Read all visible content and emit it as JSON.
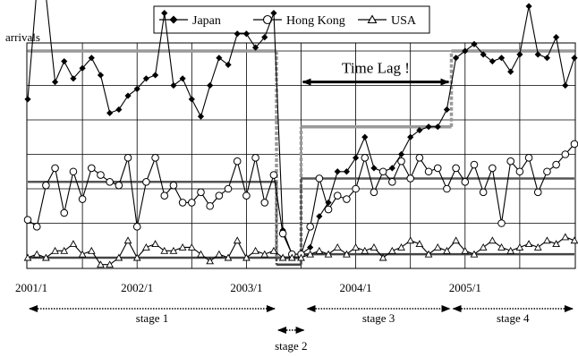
{
  "chart_data": {
    "type": "line",
    "ylabel": "arrivals",
    "ylim": [
      0,
      8
    ],
    "grid": "on",
    "legend_position": "top",
    "colors": {
      "series": "#000000",
      "stage_level": "#999999",
      "lag_arrow": "#000000",
      "grid": "#000000"
    },
    "x_ticks": [
      {
        "label": "2001/1",
        "x": 1
      },
      {
        "label": "2002/1",
        "x": 13
      },
      {
        "label": "2003/1",
        "x": 25
      },
      {
        "label": "2004/1",
        "x": 37
      },
      {
        "label": "2005/1",
        "x": 49
      }
    ],
    "series": [
      {
        "name": "Japan",
        "marker": "diamond-filled",
        "values": [
          4.6,
          7.8,
          7.6,
          5.1,
          5.7,
          5.2,
          5.5,
          5.8,
          5.3,
          4.2,
          4.3,
          4.7,
          4.9,
          5.2,
          5.3,
          7.1,
          5.0,
          5.2,
          4.6,
          4.1,
          5.0,
          5.8,
          5.6,
          6.5,
          6.5,
          6.1,
          6.4,
          7.1,
          0.8,
          0.1,
          0.1,
          0.3,
          1.2,
          1.6,
          2.5,
          2.5,
          2.9,
          3.5,
          2.6,
          2.5,
          2.6,
          3.0,
          3.5,
          3.7,
          3.8,
          3.8,
          4.3,
          5.8,
          6.0,
          6.2,
          5.9,
          5.7,
          5.8,
          5.4,
          5.9,
          7.3,
          5.9,
          5.8,
          6.4,
          5.0,
          5.8
        ]
      },
      {
        "name": "Hong Kong",
        "marker": "circle-open",
        "values": [
          1.1,
          0.9,
          2.1,
          2.6,
          1.3,
          2.5,
          1.7,
          2.6,
          2.4,
          2.2,
          2.1,
          2.9,
          0.9,
          2.2,
          2.9,
          1.8,
          2.1,
          1.6,
          1.6,
          1.9,
          1.5,
          1.8,
          2.0,
          2.8,
          1.8,
          2.9,
          1.6,
          2.4,
          0.7,
          0.1,
          0.1,
          0.9,
          2.3,
          1.4,
          1.8,
          1.7,
          2.0,
          2.9,
          1.9,
          2.5,
          2.2,
          2.8,
          2.3,
          2.9,
          2.5,
          2.6,
          2.0,
          2.6,
          2.2,
          2.7,
          1.9,
          2.6,
          1.0,
          2.8,
          2.5,
          2.9,
          1.9,
          2.5,
          2.7,
          3.0,
          3.3
        ]
      },
      {
        "name": "USA",
        "marker": "triangle-open",
        "values": [
          0.0,
          0.1,
          0.0,
          0.2,
          0.2,
          0.4,
          0.1,
          0.2,
          -0.2,
          -0.2,
          0.0,
          0.5,
          0.0,
          0.3,
          0.4,
          0.2,
          0.2,
          0.3,
          0.3,
          0.1,
          -0.1,
          0.1,
          0.0,
          0.5,
          0.0,
          0.2,
          0.1,
          0.2,
          0.0,
          0.0,
          0.0,
          0.1,
          0.2,
          0.1,
          0.3,
          0.1,
          0.3,
          0.2,
          0.3,
          0.0,
          0.2,
          0.3,
          0.5,
          0.4,
          0.1,
          0.3,
          0.2,
          0.5,
          0.2,
          0.1,
          0.3,
          0.5,
          0.3,
          0.2,
          0.3,
          0.4,
          0.3,
          0.5,
          0.4,
          0.6,
          0.5
        ]
      }
    ],
    "stage_levels": [
      {
        "series": "Japan",
        "points": [
          [
            1,
            6.0
          ],
          [
            28.3,
            6.0
          ],
          [
            28.3,
            0.0
          ],
          [
            31,
            0.0
          ],
          [
            31,
            3.8
          ],
          [
            47.5,
            3.8
          ],
          [
            47.5,
            6.0
          ],
          [
            61,
            6.0
          ]
        ]
      },
      {
        "series": "Hong Kong",
        "points": [
          [
            1,
            2.2
          ],
          [
            28.3,
            2.2
          ],
          [
            28.3,
            0.0
          ],
          [
            31,
            0.0
          ],
          [
            31,
            2.3
          ],
          [
            61,
            2.3
          ]
        ]
      },
      {
        "series": "USA",
        "points": [
          [
            1,
            0.0
          ],
          [
            28.3,
            0.0
          ],
          [
            28.3,
            -0.2
          ],
          [
            31,
            -0.2
          ],
          [
            31,
            0.1
          ],
          [
            61,
            0.1
          ]
        ]
      }
    ],
    "annotations": [
      {
        "text": "Time Lag !",
        "from": 31.2,
        "to": 47.2,
        "y": 5.1
      }
    ],
    "stages": [
      {
        "label": "stage 1",
        "start": 1,
        "end": 28.3
      },
      {
        "label": "stage 2",
        "start": 28.3,
        "end": 31.5
      },
      {
        "label": "stage 3",
        "start": 31.5,
        "end": 47.5
      },
      {
        "label": "stage 4",
        "start": 47.5,
        "end": 61
      }
    ]
  }
}
